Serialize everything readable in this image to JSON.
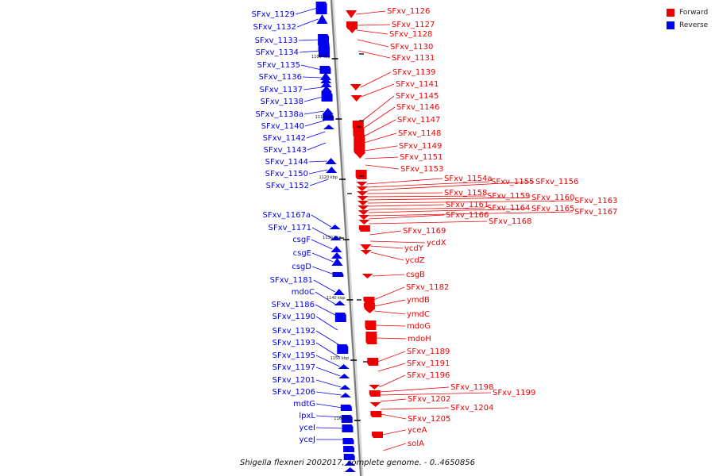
{
  "legend": {
    "forward": {
      "label": "Forward",
      "color": "#ee0000"
    },
    "reverse": {
      "label": "Reverse",
      "color": "#0000ee"
    }
  },
  "caption": "Shigella flexneri 2002017, complete genome. - 0..4650856",
  "ticks": [
    "1100 kbp",
    "1110 kbp",
    "1120 kbp",
    "1130 kbp",
    "1140 kbp",
    "1150 kbp",
    "1160 kbp"
  ],
  "reverse_genes": [
    "SFxv_1129",
    "SFxv_1132",
    "SFxv_1133",
    "SFxv_1134",
    "SFxv_1135",
    "SFxv_1136",
    "SFxv_1137",
    "SFxv_1138",
    "SFxv_1138a",
    "SFxv_1140",
    "SFxv_1142",
    "SFxv_1143",
    "SFxv_1144",
    "SFxv_1150",
    "SFxv_1152",
    "SFxv_1167a",
    "SFxv_1171",
    "csgF",
    "csgE",
    "csgD",
    "SFxv_1181",
    "mdoC",
    "SFxv_1186",
    "SFxv_1190",
    "SFxv_1192",
    "SFxv_1193",
    "SFxv_1195",
    "SFxv_1197",
    "SFxv_1201",
    "SFxv_1206",
    "mdtG",
    "lpxL",
    "yceI",
    "yceJ"
  ],
  "forward_genes": [
    "SFxv_1126",
    "SFxv_1127",
    "SFxv_1128",
    "SFxv_1130",
    "SFxv_1131",
    "SFxv_1139",
    "SFxv_1141",
    "SFxv_1145",
    "SFxv_1146",
    "SFxv_1147",
    "SFxv_1148",
    "SFxv_1149",
    "SFxv_1151",
    "SFxv_1153",
    "SFxv_1154a",
    "SFxv_1155",
    "SFxv_1156",
    "SFxv_1158",
    "SFxv_1159",
    "SFxv_1160",
    "SFxv_1163",
    "SFxv_1161",
    "SFxv_1164",
    "SFxv_1165",
    "SFxv_1167",
    "SFxv_1166",
    "SFxv_1168",
    "SFxv_1169",
    "ycdX",
    "ycdY",
    "ycdZ",
    "csgB",
    "SFxv_1182",
    "ymdB",
    "ymdC",
    "mdoG",
    "mdoH",
    "SFxv_1189",
    "SFxv_1191",
    "SFxv_1196",
    "SFxv_1198",
    "SFxv_1199",
    "SFxv_1202",
    "SFxv_1204",
    "SFxv_1205",
    "yceA",
    "solA"
  ]
}
